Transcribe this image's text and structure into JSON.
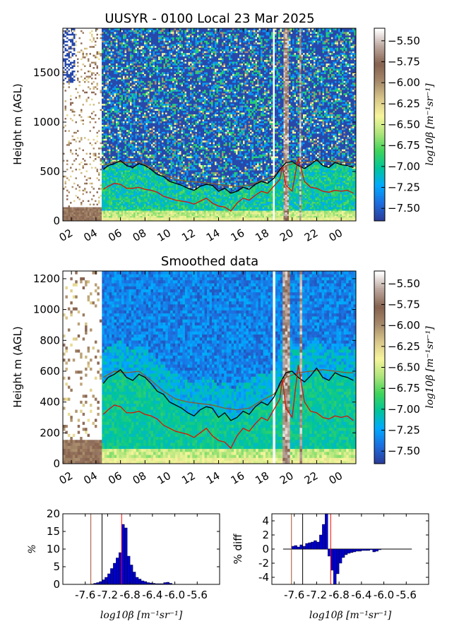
{
  "chart_data": [
    {
      "type": "heatmap",
      "title": "UUSYR - 0100 Local 23 Mar 2025",
      "ylabel": "Height m (AGL)",
      "xlabel": "",
      "x_tick_labels": [
        "02",
        "04",
        "06",
        "08",
        "10",
        "12",
        "14",
        "16",
        "18",
        "20",
        "22",
        "00"
      ],
      "x_tick_hours": [
        2,
        4,
        6,
        8,
        10,
        12,
        14,
        16,
        18,
        20,
        22,
        24
      ],
      "x_range_hours": [
        1.3,
        25.2
      ],
      "y_ticks": [
        0,
        500,
        1000,
        1500
      ],
      "ylim": [
        0,
        1950
      ],
      "colorbar": {
        "label": "log10β [m⁻¹sr⁻¹]",
        "ticks": [
          -5.5,
          -5.75,
          -6.0,
          -6.25,
          -6.5,
          -6.75,
          -7.0,
          -7.25,
          -7.5
        ],
        "tick_labels": [
          "−5.50",
          "−5.75",
          "−6.00",
          "−6.25",
          "−6.50",
          "−6.75",
          "−7.00",
          "−7.25",
          "−7.50"
        ],
        "range": [
          -7.65,
          -5.35
        ],
        "colormap": [
          "#2a3d9a",
          "#1d6fe0",
          "#00aaff",
          "#00c59a",
          "#3fd45a",
          "#aee57a",
          "#f7f59c",
          "#d9c78a",
          "#a6896a",
          "#86624f",
          "#bba59c",
          "#ffffff"
        ]
      },
      "boundary_layer_black": [
        [
          4.6,
          520
        ],
        [
          5.0,
          560
        ],
        [
          5.5,
          580
        ],
        [
          6.0,
          610
        ],
        [
          6.5,
          560
        ],
        [
          7.0,
          540
        ],
        [
          7.5,
          580
        ],
        [
          8.0,
          560
        ],
        [
          8.5,
          520
        ],
        [
          9.0,
          470
        ],
        [
          9.5,
          450
        ],
        [
          10.0,
          400
        ],
        [
          10.5,
          380
        ],
        [
          11.0,
          360
        ],
        [
          11.5,
          330
        ],
        [
          12.0,
          310
        ],
        [
          12.5,
          350
        ],
        [
          13.0,
          370
        ],
        [
          13.5,
          360
        ],
        [
          14.0,
          300
        ],
        [
          14.5,
          330
        ],
        [
          15.0,
          280
        ],
        [
          15.5,
          300
        ],
        [
          16.0,
          340
        ],
        [
          16.5,
          320
        ],
        [
          17.0,
          370
        ],
        [
          17.5,
          400
        ],
        [
          18.0,
          380
        ],
        [
          18.5,
          430
        ],
        [
          19.0,
          520
        ],
        [
          19.5,
          590
        ],
        [
          20.0,
          600
        ],
        [
          20.5,
          560
        ],
        [
          21.0,
          530
        ],
        [
          21.5,
          570
        ],
        [
          22.0,
          620
        ],
        [
          22.5,
          560
        ],
        [
          23.0,
          540
        ],
        [
          23.5,
          590
        ],
        [
          24.0,
          570
        ],
        [
          24.5,
          560
        ],
        [
          25.0,
          540
        ]
      ],
      "boundary_layer_brown": [
        [
          4.6,
          560
        ],
        [
          5.5,
          600
        ],
        [
          6.5,
          590
        ],
        [
          7.5,
          600
        ],
        [
          8.5,
          540
        ],
        [
          9.5,
          470
        ],
        [
          10.5,
          420
        ],
        [
          11.5,
          400
        ],
        [
          12.5,
          390
        ],
        [
          13.5,
          380
        ],
        [
          14.5,
          360
        ],
        [
          15.5,
          350
        ],
        [
          16.5,
          360
        ],
        [
          17.5,
          410
        ],
        [
          18.5,
          450
        ],
        [
          19.5,
          560
        ],
        [
          20.5,
          590
        ],
        [
          21.5,
          600
        ],
        [
          22.5,
          610
        ],
        [
          23.5,
          600
        ],
        [
          24.5,
          590
        ],
        [
          25.0,
          590
        ]
      ],
      "boundary_layer_red": [
        [
          4.6,
          320
        ],
        [
          5.0,
          350
        ],
        [
          5.5,
          380
        ],
        [
          6.0,
          370
        ],
        [
          6.5,
          330
        ],
        [
          7.0,
          330
        ],
        [
          7.5,
          340
        ],
        [
          8.0,
          320
        ],
        [
          8.5,
          310
        ],
        [
          9.0,
          290
        ],
        [
          9.5,
          250
        ],
        [
          10.0,
          230
        ],
        [
          10.5,
          210
        ],
        [
          11.0,
          200
        ],
        [
          11.5,
          190
        ],
        [
          12.0,
          170
        ],
        [
          12.5,
          200
        ],
        [
          13.0,
          230
        ],
        [
          13.5,
          180
        ],
        [
          14.0,
          150
        ],
        [
          14.5,
          140
        ],
        [
          15.0,
          100
        ],
        [
          15.5,
          180
        ],
        [
          16.0,
          230
        ],
        [
          16.5,
          210
        ],
        [
          17.0,
          260
        ],
        [
          17.5,
          300
        ],
        [
          18.0,
          280
        ],
        [
          18.5,
          350
        ],
        [
          19.0,
          420
        ],
        [
          19.2,
          550
        ],
        [
          19.5,
          360
        ],
        [
          20.0,
          300
        ],
        [
          20.5,
          640
        ],
        [
          21.0,
          400
        ],
        [
          21.5,
          340
        ],
        [
          22.0,
          330
        ],
        [
          22.5,
          300
        ],
        [
          23.0,
          290
        ],
        [
          23.5,
          310
        ],
        [
          24.0,
          300
        ],
        [
          24.5,
          310
        ],
        [
          25.0,
          280
        ]
      ]
    },
    {
      "type": "heatmap",
      "title": "Smoothed data",
      "ylabel": "Height m (AGL)",
      "xlabel": "",
      "x_tick_labels": [
        "02",
        "04",
        "06",
        "08",
        "10",
        "12",
        "14",
        "16",
        "18",
        "20",
        "22",
        "00"
      ],
      "x_tick_hours": [
        2,
        4,
        6,
        8,
        10,
        12,
        14,
        16,
        18,
        20,
        22,
        24
      ],
      "x_range_hours": [
        1.3,
        25.2
      ],
      "y_ticks": [
        0,
        200,
        400,
        600,
        800,
        1000,
        1200
      ],
      "ylim": [
        0,
        1250
      ],
      "colorbar": {
        "label": "log10β [m⁻¹sr⁻¹]",
        "ticks": [
          -5.5,
          -5.75,
          -6.0,
          -6.25,
          -6.5,
          -6.75,
          -7.0,
          -7.25,
          -7.5
        ],
        "tick_labels": [
          "−5.50",
          "−5.75",
          "−6.00",
          "−6.25",
          "−6.50",
          "−6.75",
          "−7.00",
          "−7.25",
          "−7.50"
        ],
        "range": [
          -7.65,
          -5.35
        ]
      }
    },
    {
      "type": "bar",
      "title": "",
      "ylabel": "%",
      "xlabel": "log10β [m⁻¹sr⁻¹]",
      "x_tick_values": [
        -7.6,
        -7.2,
        -6.8,
        -6.4,
        -6.0,
        -5.6
      ],
      "x_tick_labels": [
        "-7.6",
        "-7.2",
        "-6.8",
        "-6.4",
        "-6.0",
        "-5.6"
      ],
      "xlim": [
        -8.0,
        -5.2
      ],
      "y_ticks": [
        0,
        5,
        10,
        15,
        20
      ],
      "ylim": [
        0,
        20
      ],
      "bin_width": 0.05,
      "bins_left": [
        -7.5,
        -7.45,
        -7.4,
        -7.35,
        -7.3,
        -7.25,
        -7.2,
        -7.15,
        -7.1,
        -7.05,
        -7.0,
        -6.95,
        -6.9,
        -6.85,
        -6.8,
        -6.75,
        -6.7,
        -6.65,
        -6.6,
        -6.55,
        -6.5,
        -6.45,
        -6.4,
        -6.35,
        -6.3,
        -6.25,
        -6.2,
        -6.15,
        -6.1
      ],
      "values": [
        0.1,
        0.3,
        0.5,
        0.8,
        1.3,
        2.0,
        3.0,
        4.5,
        6.0,
        7.5,
        9.0,
        17.0,
        16.0,
        8.0,
        5.5,
        3.5,
        2.0,
        1.5,
        1.0,
        0.8,
        0.5,
        0.4,
        0.3,
        0.2,
        0.2,
        0.2,
        0.5,
        0.6,
        0.3
      ],
      "vlines": [
        {
          "x": -7.5,
          "color": "#a0522d"
        },
        {
          "x": -7.3,
          "color": "#000000"
        },
        {
          "x": -6.95,
          "color": "#ff0000"
        }
      ]
    },
    {
      "type": "bar",
      "title": "",
      "ylabel": "% diff",
      "xlabel": "log10β [m⁻¹sr⁻¹]",
      "x_tick_values": [
        -7.6,
        -7.2,
        -6.8,
        -6.4,
        -6.0,
        -5.6
      ],
      "x_tick_labels": [
        "-7.6",
        "-7.2",
        "-6.8",
        "-6.4",
        "-6.0",
        "-5.6"
      ],
      "xlim": [
        -8.0,
        -5.2
      ],
      "y_ticks": [
        4,
        2,
        0,
        -2,
        -4
      ],
      "ylim": [
        -5,
        5
      ],
      "bin_width": 0.05,
      "bins_left": [
        -7.65,
        -7.6,
        -7.55,
        -7.5,
        -7.45,
        -7.4,
        -7.35,
        -7.3,
        -7.25,
        -7.2,
        -7.15,
        -7.1,
        -7.05,
        -7.0,
        -6.95,
        -6.9,
        -6.85,
        -6.8,
        -6.75,
        -6.7,
        -6.65,
        -6.6,
        -6.55,
        -6.5,
        -6.45,
        -6.4,
        -6.35,
        -6.3,
        -6.25,
        -6.2,
        -6.15,
        -6.1
      ],
      "values": [
        0.4,
        0.5,
        0.3,
        0.6,
        0.4,
        0.8,
        0.9,
        1.0,
        1.2,
        1.0,
        2.0,
        3.5,
        5.0,
        -1.0,
        -3.0,
        -5.0,
        -3.5,
        -2.0,
        -1.2,
        -0.8,
        -0.6,
        -0.5,
        -0.4,
        -0.3,
        -0.3,
        -0.2,
        -0.2,
        -0.2,
        -0.1,
        -0.4,
        -0.3,
        -0.1
      ],
      "vlines": [
        {
          "x": -7.65,
          "color": "#a0522d"
        },
        {
          "x": -7.45,
          "color": "#000000"
        },
        {
          "x": -6.95,
          "color": "#ff0000"
        }
      ]
    }
  ]
}
